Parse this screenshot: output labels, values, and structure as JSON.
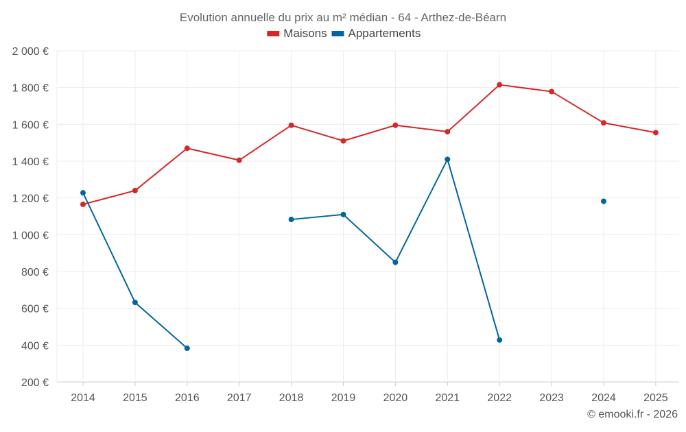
{
  "chart_data": {
    "type": "line",
    "title": "Evolution annuelle du prix au m² médian - 64 - Arthez-de-Béarn",
    "x": [
      "2014",
      "2015",
      "2016",
      "2017",
      "2018",
      "2019",
      "2020",
      "2021",
      "2022",
      "2023",
      "2024",
      "2025"
    ],
    "ylim": [
      200,
      2000
    ],
    "yticks": [
      200,
      400,
      600,
      800,
      1000,
      1200,
      1400,
      1600,
      1800,
      2000
    ],
    "ytick_labels": [
      "200 €",
      "400 €",
      "600 €",
      "800 €",
      "1 000 €",
      "1 200 €",
      "1 400 €",
      "1 600 €",
      "1 800 €",
      "2 000 €"
    ],
    "grid": true,
    "legend_position": "top-center",
    "series": [
      {
        "name": "Maisons",
        "color": "#d62728",
        "values": [
          1165,
          1240,
          1470,
          1405,
          1595,
          1510,
          1595,
          1560,
          1815,
          1778,
          1608,
          1555
        ]
      },
      {
        "name": "Appartements",
        "color": "#04659d",
        "values": [
          1228,
          632,
          383,
          null,
          1083,
          1110,
          850,
          1410,
          428,
          null,
          1182,
          null
        ]
      }
    ]
  },
  "credit": "© emooki.fr - 2026"
}
